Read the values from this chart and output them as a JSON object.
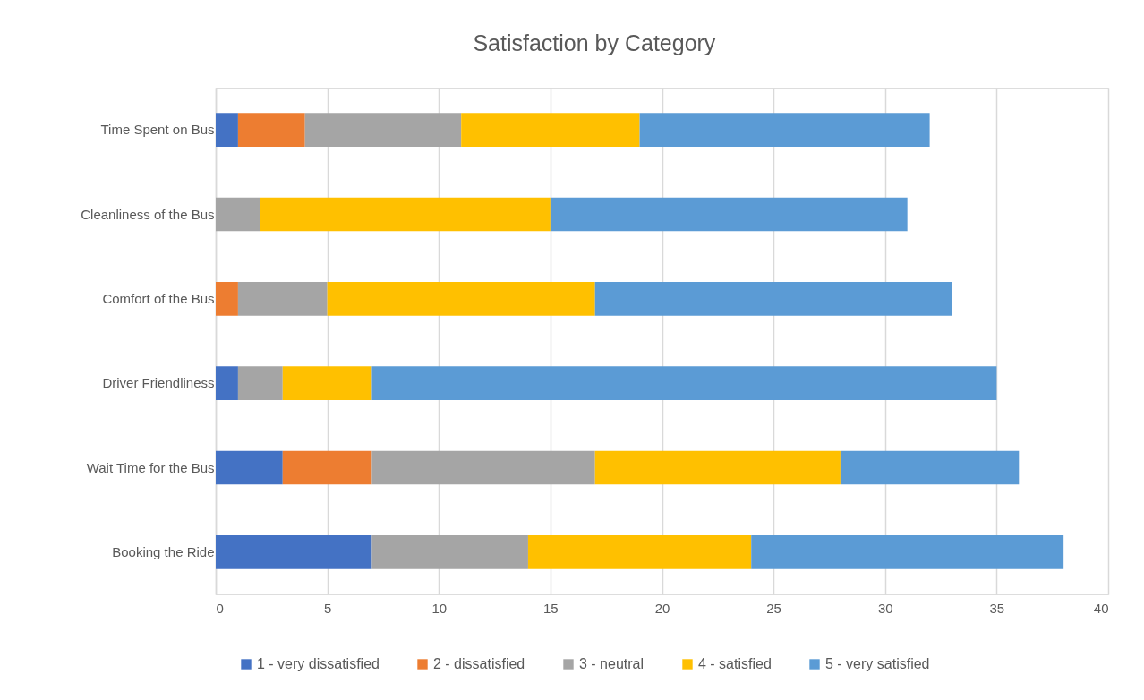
{
  "chart_data": {
    "type": "bar",
    "title": "Satisfaction by Category",
    "orientation": "horizontal",
    "stacked": true,
    "categories": [
      "Time Spent on Bus",
      "Cleanliness of the Bus",
      "Comfort of the Bus",
      "Driver Friendliness",
      "Wait Time for the Bus",
      "Booking the Ride"
    ],
    "series": [
      {
        "name": "1 - very dissatisfied",
        "color": "#4472c4",
        "values": [
          1,
          null,
          null,
          1,
          3,
          7
        ]
      },
      {
        "name": "2 - dissatisfied",
        "color": "#ed7d31",
        "values": [
          3,
          null,
          1,
          null,
          4,
          null
        ]
      },
      {
        "name": "3 - neutral",
        "color": "#a5a5a5",
        "values": [
          7,
          2,
          4,
          2,
          10,
          7
        ]
      },
      {
        "name": "4 - satisfied",
        "color": "#ffc000",
        "values": [
          8,
          13,
          12,
          4,
          11,
          10
        ]
      },
      {
        "name": "5 - very satisfied",
        "color": "#5b9bd5",
        "values": [
          13,
          16,
          16,
          28,
          8,
          14
        ]
      }
    ],
    "xlim": [
      0,
      40
    ],
    "xticks": [
      0,
      5,
      10,
      15,
      20,
      25,
      30,
      35,
      40
    ],
    "grid": "x",
    "legend": "bottom"
  }
}
